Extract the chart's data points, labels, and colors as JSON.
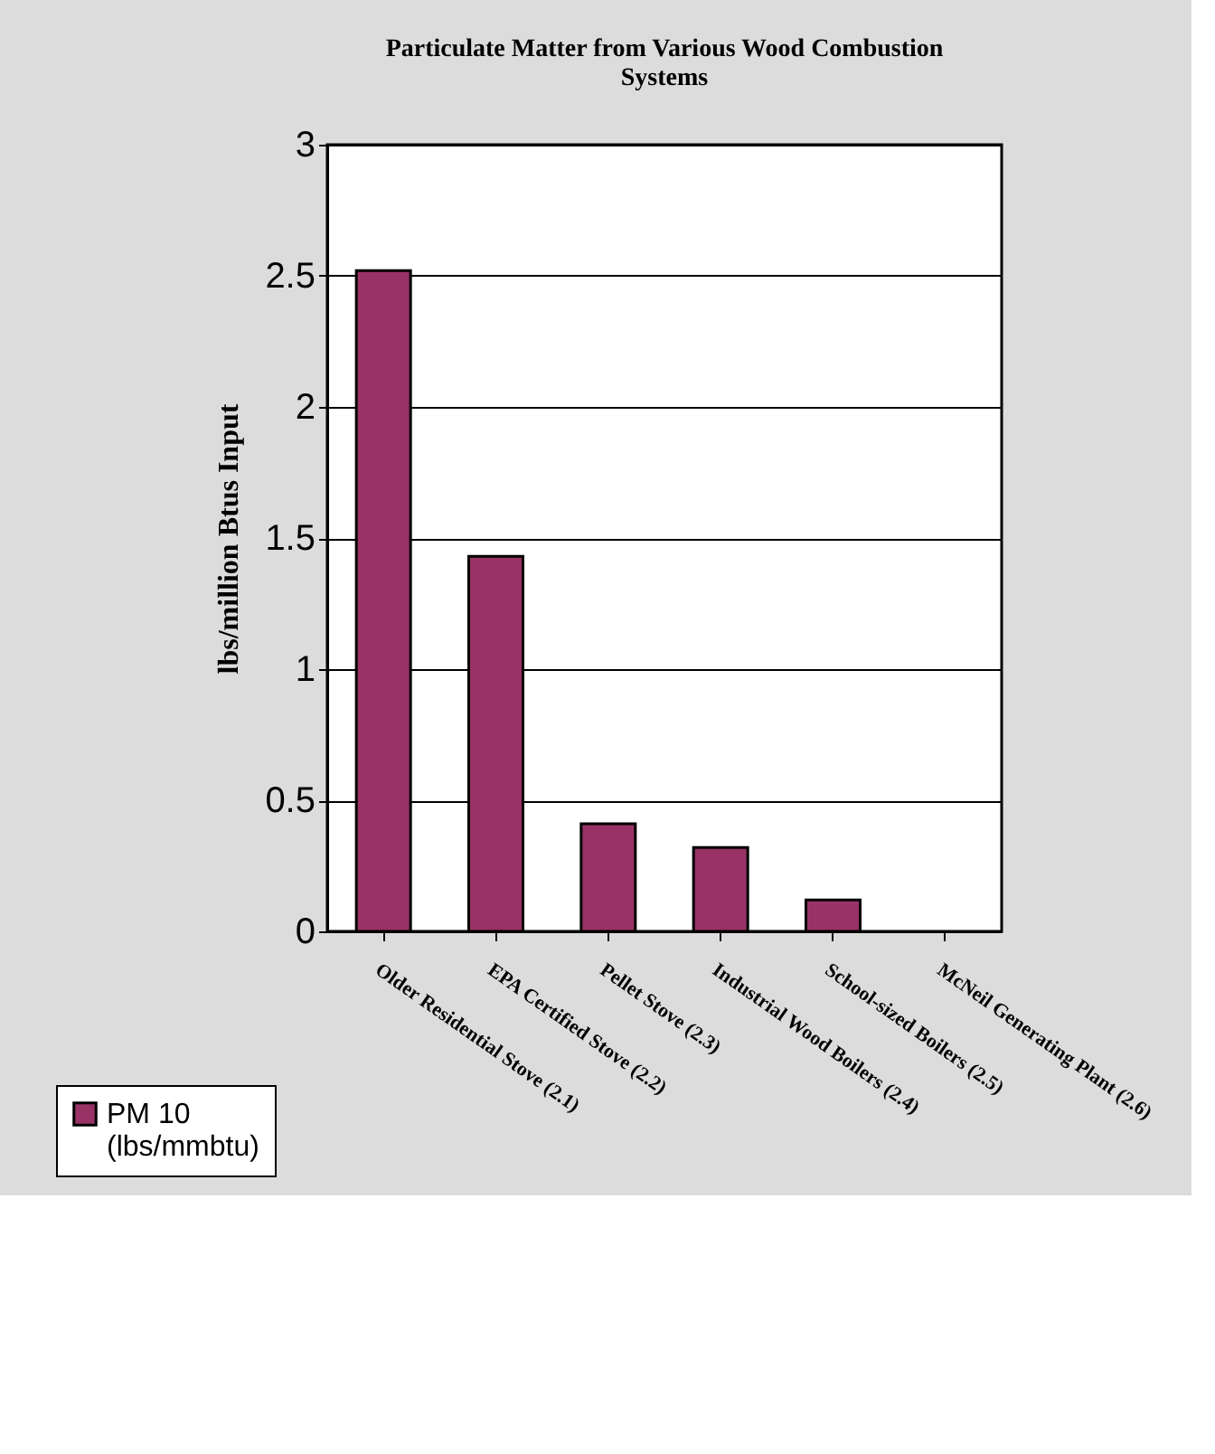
{
  "chart_data": {
    "type": "bar",
    "title": "Particulate Matter from Various Wood Combustion Systems",
    "ylabel": "lbs/million Btus Input",
    "categories": [
      "Older Residential Stove (2.1)",
      "EPA Certified Stove (2.2)",
      "Pellet Stove (2.3)",
      "Industrial Wood Boilers (2.4)",
      "School-sized Boilers (2.5)",
      "McNeil Generating Plant (2.6)"
    ],
    "series": [
      {
        "name": "PM 10 (lbs/mmbtu)",
        "color": "#993366",
        "values": [
          2.52,
          1.43,
          0.41,
          0.32,
          0.12,
          0
        ]
      }
    ],
    "ylim": [
      0,
      3
    ],
    "yticks": [
      0,
      0.5,
      1,
      1.5,
      2,
      2.5,
      3
    ],
    "grid": "y",
    "legend": "bottom left"
  }
}
